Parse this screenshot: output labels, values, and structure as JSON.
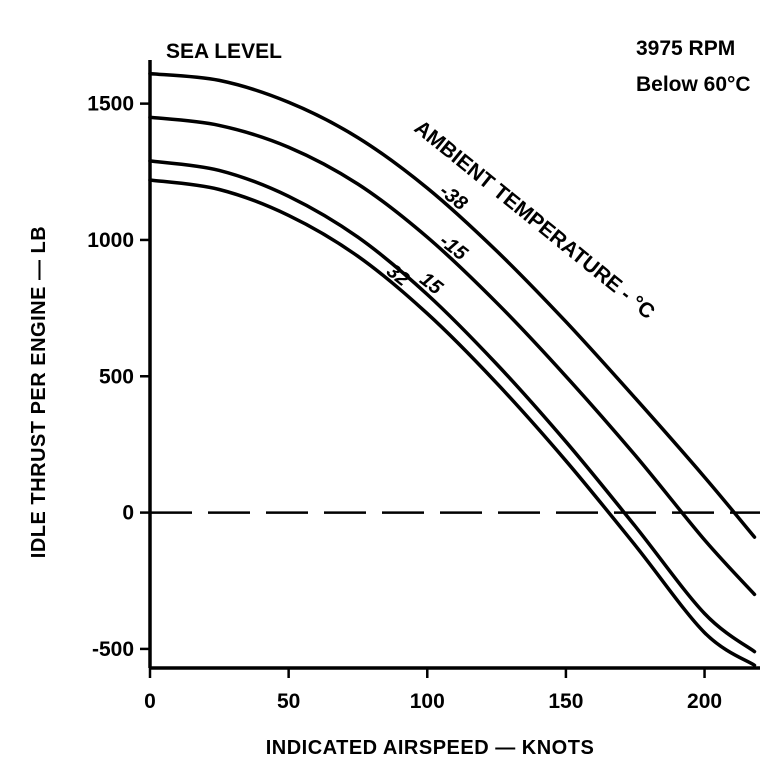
{
  "chart_data": {
    "type": "line",
    "title": "",
    "xlabel": "INDICATED AIRSPEED — KNOTS",
    "ylabel": "IDLE THRUST PER ENGINE — LB",
    "xlim": [
      0,
      220
    ],
    "ylim": [
      -570,
      1660
    ],
    "x_ticks": [
      0,
      50,
      100,
      150,
      200
    ],
    "y_ticks": [
      -500,
      0,
      500,
      1000,
      1500
    ],
    "grid": false,
    "annotations": {
      "altitude": "SEA LEVEL",
      "rpm": "3975 RPM",
      "condition": "Below 60°C",
      "family_label": "AMBIENT TEMPERATURE - °C"
    },
    "zero_reference_line": {
      "y": 0,
      "style": "dashed"
    },
    "x": [
      0,
      25,
      50,
      75,
      100,
      125,
      150,
      175,
      200,
      218
    ],
    "series": [
      {
        "name": "-38",
        "values": [
          1610,
          1585,
          1505,
          1375,
          1190,
          960,
          700,
          420,
          130,
          -90
        ]
      },
      {
        "name": "-15",
        "values": [
          1450,
          1420,
          1340,
          1205,
          1010,
          770,
          500,
          210,
          -100,
          -300
        ]
      },
      {
        "name": "15",
        "values": [
          1290,
          1255,
          1160,
          1010,
          800,
          545,
          260,
          -50,
          -370,
          -510
        ]
      },
      {
        "name": "32",
        "values": [
          1220,
          1185,
          1090,
          940,
          730,
          475,
          190,
          -120,
          -440,
          -560
        ]
      }
    ]
  }
}
